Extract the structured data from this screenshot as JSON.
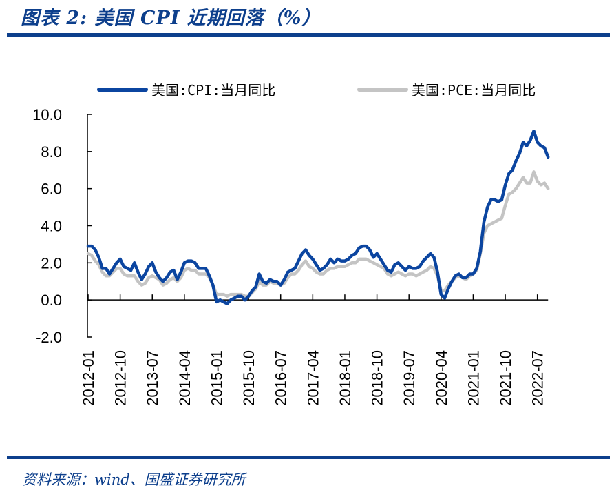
{
  "title": "图表 2:  美国 CPI 近期回落（%）",
  "source": "资料来源：wind、国盛证券研究所",
  "colors": {
    "brand": "#0d3f8c",
    "cpi": "#0b45a0",
    "pce": "#c4c4c4"
  },
  "chart_data": {
    "type": "line",
    "title": "",
    "xlabel": "",
    "ylabel": "",
    "ylim": [
      -2.0,
      10.0
    ],
    "yticks": [
      "10.0",
      "8.0",
      "6.0",
      "4.0",
      "2.0",
      "0.0",
      "-2.0"
    ],
    "ytick_values": [
      10,
      8,
      6,
      4,
      2,
      0,
      -2
    ],
    "xticks": [
      "2012-01",
      "2012-10",
      "2013-07",
      "2014-04",
      "2015-01",
      "2015-10",
      "2016-07",
      "2017-04",
      "2018-01",
      "2018-10",
      "2019-07",
      "2020-04",
      "2021-01",
      "2021-10",
      "2022-07"
    ],
    "x_start": "2012-01",
    "x_end": "2022-10",
    "grid": false,
    "legend": "top",
    "series": [
      {
        "name": "美国:CPI:当月同比",
        "color": "#0b45a0",
        "values": [
          2.9,
          2.9,
          2.7,
          2.3,
          1.7,
          1.7,
          1.4,
          1.7,
          2.0,
          2.2,
          1.8,
          1.7,
          1.6,
          2.0,
          1.5,
          1.1,
          1.4,
          1.8,
          2.0,
          1.5,
          1.2,
          1.0,
          1.2,
          1.5,
          1.6,
          1.1,
          1.5,
          2.0,
          2.1,
          2.1,
          2.0,
          1.7,
          1.7,
          1.7,
          1.3,
          0.8,
          -0.1,
          0.0,
          -0.1,
          -0.2,
          0.0,
          0.1,
          0.2,
          0.2,
          0.0,
          0.2,
          0.5,
          0.7,
          1.4,
          1.0,
          0.9,
          1.1,
          1.0,
          1.0,
          0.8,
          1.1,
          1.5,
          1.6,
          1.7,
          2.1,
          2.5,
          2.7,
          2.4,
          2.2,
          1.9,
          1.6,
          1.7,
          1.9,
          2.2,
          2.0,
          2.2,
          2.1,
          2.1,
          2.2,
          2.4,
          2.5,
          2.8,
          2.9,
          2.9,
          2.7,
          2.3,
          2.5,
          2.2,
          1.9,
          1.6,
          1.5,
          1.9,
          2.0,
          1.8,
          1.6,
          1.8,
          1.7,
          1.7,
          1.8,
          2.1,
          2.3,
          2.5,
          2.3,
          1.5,
          0.3,
          0.1,
          0.6,
          1.0,
          1.3,
          1.4,
          1.2,
          1.2,
          1.4,
          1.4,
          1.7,
          2.6,
          4.2,
          5.0,
          5.4,
          5.4,
          5.3,
          5.4,
          6.2,
          6.8,
          7.0,
          7.5,
          7.9,
          8.5,
          8.3,
          8.6,
          9.1,
          8.5,
          8.3,
          8.2,
          7.7
        ]
      },
      {
        "name": "美国:PCE:当月同比",
        "color": "#c4c4c4",
        "values": [
          2.5,
          2.4,
          2.1,
          1.9,
          1.5,
          1.3,
          1.3,
          1.5,
          1.7,
          1.7,
          1.4,
          1.3,
          1.3,
          1.3,
          1.0,
          0.8,
          0.9,
          1.2,
          1.3,
          1.2,
          1.1,
          0.8,
          0.9,
          1.1,
          1.2,
          1.0,
          1.2,
          1.6,
          1.7,
          1.6,
          1.6,
          1.4,
          1.4,
          1.4,
          1.2,
          0.8,
          0.3,
          0.3,
          0.3,
          0.2,
          0.3,
          0.3,
          0.3,
          0.3,
          0.2,
          0.2,
          0.4,
          0.6,
          1.0,
          0.8,
          0.8,
          1.0,
          0.9,
          0.9,
          0.8,
          0.9,
          1.2,
          1.4,
          1.4,
          1.6,
          1.9,
          2.1,
          1.8,
          1.7,
          1.5,
          1.4,
          1.4,
          1.6,
          1.7,
          1.7,
          1.8,
          1.8,
          1.8,
          1.9,
          2.0,
          2.0,
          2.2,
          2.2,
          2.2,
          2.1,
          2.0,
          1.9,
          1.8,
          1.7,
          1.4,
          1.3,
          1.4,
          1.5,
          1.4,
          1.3,
          1.4,
          1.4,
          1.3,
          1.4,
          1.5,
          1.6,
          1.8,
          1.7,
          1.3,
          0.5,
          0.5,
          0.8,
          1.0,
          1.2,
          1.3,
          1.2,
          1.1,
          1.3,
          1.4,
          1.6,
          2.5,
          3.6,
          4.0,
          4.1,
          4.2,
          4.3,
          4.4,
          5.1,
          5.7,
          5.8,
          6.0,
          6.3,
          6.6,
          6.3,
          6.3,
          6.9,
          6.4,
          6.2,
          6.3,
          6.0
        ]
      }
    ]
  }
}
